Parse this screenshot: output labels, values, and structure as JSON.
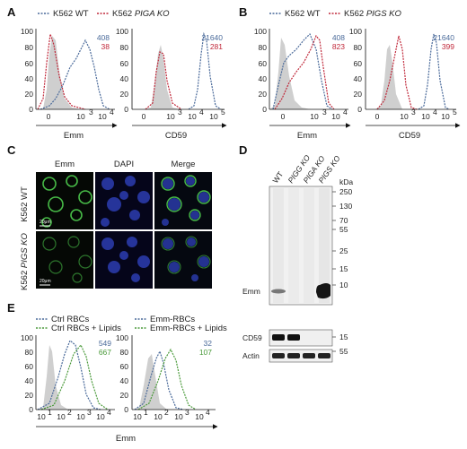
{
  "panels": {
    "A": {
      "label": "A",
      "legend": {
        "wt": "K562 WT",
        "ko_prefix": "K562 ",
        "ko_gene": "PIGA KO"
      },
      "plots": [
        {
          "xlabel": "Emm",
          "numbers": [
            "408",
            "38"
          ],
          "yticks": [
            "100",
            "80",
            "60",
            "40",
            "20",
            "0"
          ],
          "xticks": [
            "0",
            "10",
            "3",
            "10",
            "4"
          ]
        },
        {
          "xlabel": "CD59",
          "numbers": [
            "21640",
            "281"
          ],
          "yticks": [
            "100",
            "80",
            "60",
            "40",
            "20",
            "0"
          ],
          "xticks": [
            "0",
            "10",
            "3",
            "10",
            "4",
            "10",
            "5"
          ]
        }
      ]
    },
    "B": {
      "label": "B",
      "legend": {
        "wt": "K562 WT",
        "ko_prefix": "K562 ",
        "ko_gene": "PIGS KO"
      },
      "plots": [
        {
          "xlabel": "Emm",
          "numbers": [
            "408",
            "823"
          ],
          "yticks": [
            "100",
            "80",
            "60",
            "40",
            "20",
            "0"
          ],
          "xticks": [
            "0",
            "10",
            "3",
            "10",
            "4"
          ]
        },
        {
          "xlabel": "CD59",
          "numbers": [
            "21640",
            "399"
          ],
          "yticks": [
            "100",
            "80",
            "60",
            "40",
            "20",
            "0"
          ],
          "xticks": [
            "0",
            "10",
            "3",
            "10",
            "4",
            "10",
            "5"
          ]
        }
      ]
    },
    "C": {
      "label": "C",
      "columns": [
        "Emm",
        "DAPI",
        "Merge"
      ],
      "rows": [
        {
          "prefix": "K562 WT",
          "gene": ""
        },
        {
          "prefix": "K562 ",
          "gene": "PIGS KO"
        }
      ],
      "scalebar": "20μm"
    },
    "D": {
      "label": "D",
      "lanes": [
        {
          "prefix": "WT",
          "gene": ""
        },
        {
          "prefix": "",
          "gene": "PIGG KO"
        },
        {
          "prefix": "",
          "gene": "PIGA KO"
        },
        {
          "prefix": "",
          "gene": "PIGS KO"
        }
      ],
      "kda_label": "kDa",
      "markers": [
        "250",
        "130",
        "70",
        "55",
        "25",
        "15",
        "10"
      ],
      "lower_markers": [
        "15",
        "55"
      ],
      "bands": {
        "emm": "Emm",
        "cd59": "CD59",
        "actin": "Actin"
      }
    },
    "E": {
      "label": "E",
      "legends": [
        {
          "a": "Ctrl RBCs",
          "b": "Ctrl RBCs + Lipids"
        },
        {
          "a": "Emm-RBCs",
          "b": "Emm-RBCs + Lipids"
        }
      ],
      "plots": [
        {
          "numbers": [
            "549",
            "667"
          ],
          "yticks": [
            "100",
            "80",
            "60",
            "40",
            "20",
            "0"
          ],
          "xticks": [
            "10",
            "1",
            "10",
            "2",
            "10",
            "3",
            "10",
            "4"
          ]
        },
        {
          "numbers": [
            "32",
            "107"
          ],
          "yticks": [
            "100",
            "80",
            "60",
            "40",
            "20",
            "0"
          ],
          "xticks": [
            "10",
            "1",
            "10",
            "2",
            "10",
            "3",
            "10",
            "4"
          ]
        }
      ],
      "xlabel": "Emm"
    }
  },
  "colors": {
    "wt": "#4a6a9a",
    "ko": "#c0283a",
    "lipid": "#4a9a3a",
    "gray": "#c8c8c8"
  },
  "chart_data": [
    {
      "type": "line",
      "panel": "A",
      "xlabel": "Emm",
      "series": [
        {
          "name": "K562 WT",
          "x": [
            -1,
            0,
            1,
            2,
            3,
            4
          ],
          "y": [
            0,
            5,
            30,
            70,
            85,
            0
          ]
        },
        {
          "name": "K562 PIGA KO",
          "x": [
            -1,
            -0.3,
            0,
            1,
            2
          ],
          "y": [
            0,
            98,
            60,
            5,
            0
          ]
        }
      ]
    },
    {
      "type": "line",
      "panel": "A",
      "xlabel": "CD59",
      "series": [
        {
          "name": "K562 WT",
          "x": [
            3,
            4,
            4.3,
            5
          ],
          "y": [
            0,
            30,
            95,
            0
          ]
        },
        {
          "name": "K562 PIGA KO",
          "x": [
            0,
            2,
            2.5,
            3
          ],
          "y": [
            0,
            80,
            85,
            0
          ]
        }
      ]
    },
    {
      "type": "line",
      "panel": "B",
      "xlabel": "Emm",
      "series": [
        {
          "name": "K562 WT",
          "x": [
            -1,
            0,
            1,
            2,
            3
          ],
          "y": [
            0,
            40,
            80,
            85,
            0
          ]
        },
        {
          "name": "K562 PIGS KO",
          "x": [
            -1,
            0,
            1,
            2,
            3
          ],
          "y": [
            0,
            20,
            50,
            95,
            0
          ]
        }
      ]
    },
    {
      "type": "line",
      "panel": "B",
      "xlabel": "CD59",
      "series": [
        {
          "name": "K562 WT",
          "x": [
            3,
            4,
            4.3,
            5
          ],
          "y": [
            0,
            40,
            95,
            0
          ]
        },
        {
          "name": "K562 PIGS KO",
          "x": [
            0,
            2,
            3,
            3.5
          ],
          "y": [
            0,
            60,
            95,
            0
          ]
        }
      ]
    },
    {
      "type": "line",
      "panel": "E",
      "xlabel": "Emm",
      "series": [
        {
          "name": "Ctrl RBCs",
          "x": [
            1,
            2,
            2.5,
            3,
            4
          ],
          "y": [
            0,
            60,
            95,
            50,
            0
          ]
        },
        {
          "name": "Ctrl RBCs + Lipids",
          "x": [
            1,
            2,
            2.8,
            3.3,
            4
          ],
          "y": [
            0,
            40,
            90,
            60,
            0
          ]
        }
      ]
    },
    {
      "type": "line",
      "panel": "E",
      "xlabel": "Emm",
      "series": [
        {
          "name": "Emm-RBCs",
          "x": [
            1,
            1.8,
            2,
            2.3,
            3
          ],
          "y": [
            0,
            70,
            80,
            40,
            0
          ]
        },
        {
          "name": "Emm-RBCs + Lipids",
          "x": [
            1,
            1.9,
            2.2,
            2.6,
            3.2
          ],
          "y": [
            0,
            40,
            80,
            70,
            0
          ]
        }
      ]
    }
  ]
}
